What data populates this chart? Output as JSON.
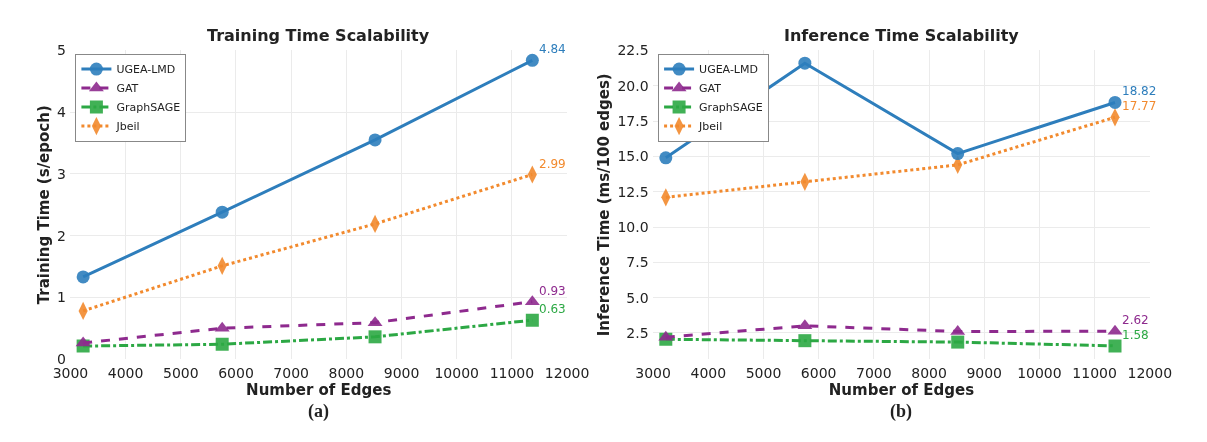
{
  "chart_data": [
    {
      "type": "line",
      "title": "Training Time Scalability",
      "xlabel": "Number of Edges",
      "ylabel": "Training Time (s/epoch)",
      "xlim": [
        3000,
        12000
      ],
      "xticks": [
        3000,
        4000,
        5000,
        6000,
        7000,
        8000,
        9000,
        10000,
        11000,
        12000
      ],
      "ylim": [
        0,
        5
      ],
      "yticks": [
        0,
        1,
        2,
        3,
        4,
        5
      ],
      "grid": true,
      "legend": "top left",
      "x": [
        3230,
        5750,
        8520,
        11370
      ],
      "annotations": [
        "(a)"
      ],
      "series": [
        {
          "name": "UGEA-LMD",
          "color": "#2e7ebc",
          "marker": "circle",
          "line_style": "solid",
          "values": [
            1.33,
            2.38,
            3.55,
            4.84
          ],
          "value_labels": [
            null,
            null,
            null,
            "4.84"
          ]
        },
        {
          "name": "GAT",
          "color": "#8e2a8e",
          "marker": "triangle",
          "line_style": "dashed",
          "values": [
            0.26,
            0.5,
            0.59,
            0.93
          ],
          "value_labels": [
            null,
            null,
            null,
            "0.93"
          ]
        },
        {
          "name": "GraphSAGE",
          "color": "#2ca844",
          "marker": "square",
          "line_style": "dashdot",
          "values": [
            0.21,
            0.24,
            0.36,
            0.63
          ],
          "value_labels": [
            null,
            null,
            null,
            "0.63"
          ]
        },
        {
          "name": "Jbeil",
          "color": "#f28a2e",
          "marker": "diamond",
          "line_style": "dotted",
          "values": [
            0.78,
            1.51,
            2.19,
            2.99
          ],
          "value_labels": [
            null,
            null,
            null,
            "2.99"
          ]
        }
      ]
    },
    {
      "type": "line",
      "title": "Inference Time Scalability",
      "xlabel": "Number of Edges",
      "ylabel": "Inference Time (ms/100 edges)",
      "xlim": [
        3000,
        12000
      ],
      "xticks": [
        3000,
        4000,
        5000,
        6000,
        7000,
        8000,
        9000,
        10000,
        11000,
        12000
      ],
      "ylim": [
        0.65,
        22.5
      ],
      "yticks": [
        {
          "value": 2.5,
          "label": "2.5"
        },
        {
          "value": 5,
          "label": "5.0"
        },
        {
          "value": 7.5,
          "label": "7.5"
        },
        {
          "value": 10,
          "label": "10.0"
        },
        {
          "value": 12.5,
          "label": "12.5"
        },
        {
          "value": 15,
          "label": "15.0"
        },
        {
          "value": 17.5,
          "label": "17.5"
        },
        {
          "value": 20,
          "label": "20.0"
        },
        {
          "value": 22.5,
          "label": "22.5"
        }
      ],
      "grid": true,
      "legend": "top left",
      "x": [
        3230,
        5750,
        8520,
        11370
      ],
      "annotations": [
        "(b)"
      ],
      "series": [
        {
          "name": "UGEA-LMD",
          "color": "#2e7ebc",
          "marker": "circle",
          "line_style": "solid",
          "values": [
            14.9,
            21.6,
            15.2,
            18.82
          ],
          "value_labels": [
            null,
            null,
            null,
            "18.82"
          ]
        },
        {
          "name": "GAT",
          "color": "#8e2a8e",
          "marker": "triangle",
          "line_style": "dashed",
          "values": [
            2.2,
            3.0,
            2.6,
            2.62
          ],
          "value_labels": [
            null,
            null,
            null,
            "2.62"
          ]
        },
        {
          "name": "GraphSAGE",
          "color": "#2ca844",
          "marker": "square",
          "line_style": "dashdot",
          "values": [
            2.05,
            1.95,
            1.85,
            1.58
          ],
          "value_labels": [
            null,
            null,
            null,
            "1.58"
          ]
        },
        {
          "name": "Jbeil",
          "color": "#f28a2e",
          "marker": "diamond",
          "line_style": "dotted",
          "values": [
            12.1,
            13.2,
            14.4,
            17.77
          ],
          "value_labels": [
            null,
            null,
            null,
            "17.77"
          ]
        }
      ]
    }
  ]
}
